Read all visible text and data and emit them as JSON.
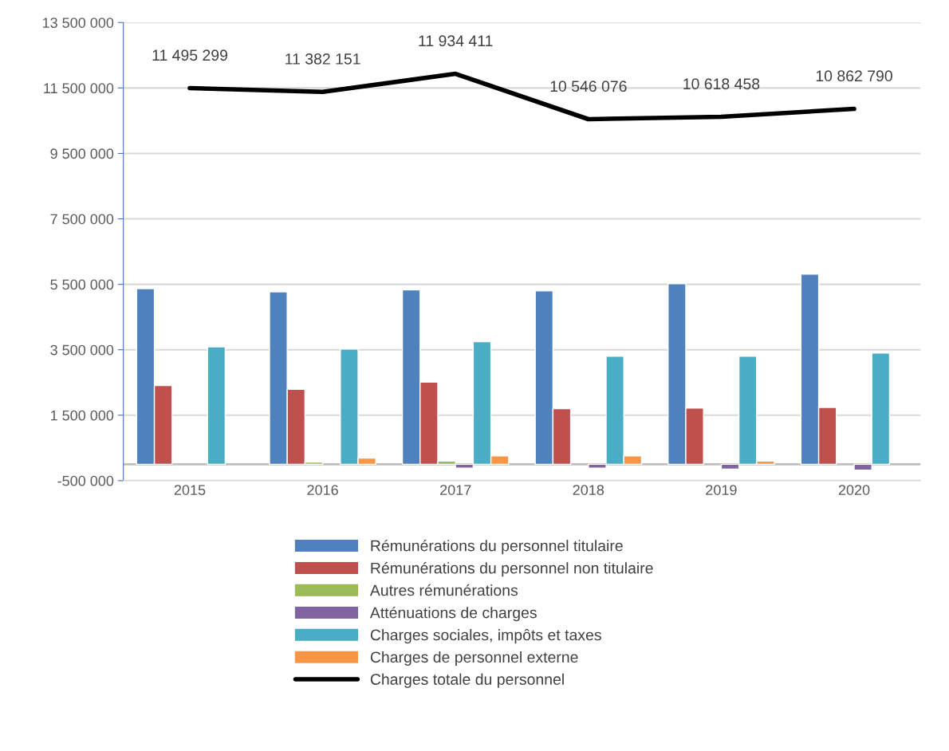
{
  "chart_data": {
    "type": "bar",
    "categories": [
      "2015",
      "2016",
      "2017",
      "2018",
      "2019",
      "2020"
    ],
    "series": [
      {
        "name": "Rémunérations du personnel titulaire",
        "color": "#4f81bd",
        "values": [
          5370000,
          5270000,
          5330000,
          5300000,
          5520000,
          5810000
        ]
      },
      {
        "name": "Rémunérations du personnel non titulaire",
        "color": "#c0504d",
        "values": [
          2410000,
          2290000,
          2510000,
          1700000,
          1720000,
          1740000
        ]
      },
      {
        "name": "Autres rémunérations",
        "color": "#9bbb59",
        "values": [
          null,
          70000,
          100000,
          null,
          null,
          null
        ]
      },
      {
        "name": "Atténuations de charges",
        "color": "#8064a2",
        "values": [
          null,
          null,
          -120000,
          -120000,
          -150000,
          -180000
        ]
      },
      {
        "name": "Charges sociales, impôts et taxes",
        "color": "#4bacc6",
        "values": [
          3590000,
          3520000,
          3750000,
          3300000,
          3300000,
          3400000
        ]
      },
      {
        "name": "Charges de personnel externe",
        "color": "#f79646",
        "values": [
          null,
          190000,
          260000,
          260000,
          100000,
          null
        ]
      },
      {
        "name": "Charges totale du personnel",
        "type": "line",
        "color": "#000000",
        "values": [
          11495299,
          11382151,
          11934411,
          10546076,
          10618458,
          10862790
        ],
        "value_labels": [
          "11 495 299",
          "11 382 151",
          "11 934 411",
          "10 546 076",
          "10 618 458",
          "10 862 790"
        ]
      }
    ],
    "ylim": [
      -500000,
      13500000
    ],
    "yticks": [
      {
        "value": -500000,
        "label": "-500 000"
      },
      {
        "value": 1500000,
        "label": "1 500 000"
      },
      {
        "value": 3500000,
        "label": "3 500 000"
      },
      {
        "value": 5500000,
        "label": "5 500 000"
      },
      {
        "value": 7500000,
        "label": "7 500 000"
      },
      {
        "value": 9500000,
        "label": "9 500 000"
      },
      {
        "value": 11500000,
        "label": "11 500 000"
      },
      {
        "value": 13500000,
        "label": "13 500 000"
      }
    ],
    "grid": "y",
    "legend": "bottom"
  }
}
